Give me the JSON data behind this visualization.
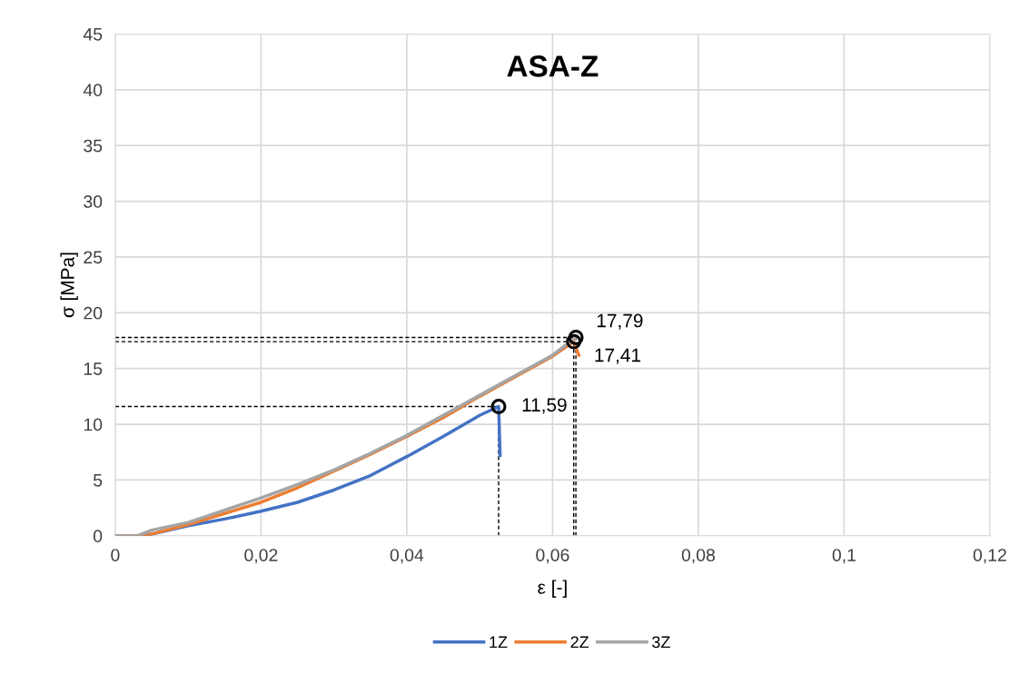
{
  "chart_data": {
    "type": "line",
    "title": "ASA-Z",
    "xlabel": "ε [-]",
    "ylabel": "σ [MPa]",
    "xlim": [
      0,
      0.12
    ],
    "xticks": [
      0,
      {
        "value": 0.02,
        "label": "0,02"
      },
      {
        "value": 0.04,
        "label": "0,04"
      },
      {
        "value": 0.06,
        "label": "0,06"
      },
      {
        "value": 0.08,
        "label": "0,08"
      },
      {
        "value": 0.1,
        "label": "0,1"
      },
      {
        "value": 0.12,
        "label": "0,12"
      }
    ],
    "ylim": [
      0,
      45
    ],
    "yticks": [
      0,
      5,
      10,
      15,
      20,
      25,
      30,
      35,
      40,
      45
    ],
    "grid": true,
    "legend": "bottom",
    "marker": "none",
    "line_style": "solid",
    "series": [
      {
        "name": "1Z",
        "color": "#4472c4",
        "x": [
          0,
          0.004,
          0.01,
          0.015,
          0.02,
          0.025,
          0.03,
          0.035,
          0.04,
          0.045,
          0.05,
          0.0526,
          0.0528
        ],
        "values": [
          0,
          0,
          0.9,
          1.5,
          2.2,
          3.0,
          4.1,
          5.4,
          7.1,
          8.9,
          10.8,
          11.59,
          7.2
        ]
      },
      {
        "name": "2Z",
        "color": "#ed7d31",
        "x": [
          0,
          0.004,
          0.01,
          0.015,
          0.02,
          0.025,
          0.03,
          0.035,
          0.04,
          0.045,
          0.05,
          0.055,
          0.06,
          0.0629,
          0.0636
        ],
        "values": [
          0,
          0,
          1.0,
          2.0,
          3.0,
          4.3,
          5.8,
          7.3,
          8.9,
          10.6,
          12.5,
          14.3,
          16.1,
          17.41,
          16.2
        ]
      },
      {
        "name": "3Z",
        "color": "#a5a5a5",
        "x": [
          0,
          0.003,
          0.005,
          0.01,
          0.015,
          0.02,
          0.025,
          0.03,
          0.035,
          0.04,
          0.045,
          0.05,
          0.055,
          0.06,
          0.0632
        ],
        "values": [
          0,
          0,
          0.5,
          1.2,
          2.3,
          3.4,
          4.6,
          5.9,
          7.4,
          9.0,
          10.8,
          12.6,
          14.4,
          16.2,
          17.79
        ]
      }
    ],
    "annotations": [
      {
        "text": "11,59",
        "x": 0.0526,
        "y": 11.59
      },
      {
        "text": "17,41",
        "x": 0.0629,
        "y": 17.41
      },
      {
        "text": "17,79",
        "x": 0.0632,
        "y": 17.79
      }
    ]
  }
}
